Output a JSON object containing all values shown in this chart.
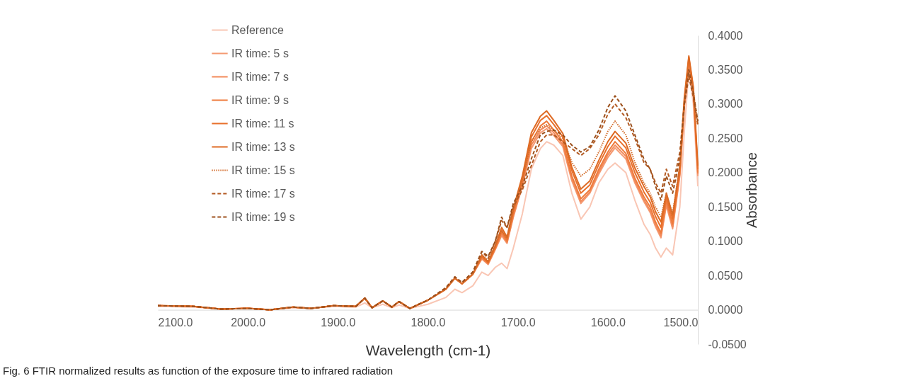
{
  "chart_data": {
    "type": "line",
    "title": "Fig. 6 FTIR normalized results as function of the exposure time to infrared radiation",
    "xlabel": "Wavelength (cm-1)",
    "ylabel": "Absorbance",
    "legend": "top left",
    "xlim": [
      2100,
      1500
    ],
    "ylim": [
      -0.05,
      0.4
    ],
    "xticks": [
      {
        "value": 2100,
        "label": "2100.0"
      },
      {
        "value": 2000,
        "label": "2000.0"
      },
      {
        "value": 1900,
        "label": "1900.0"
      },
      {
        "value": 1800,
        "label": "1800.0"
      },
      {
        "value": 1700,
        "label": "1700.0"
      },
      {
        "value": 1600,
        "label": "1600.0"
      },
      {
        "value": 1500,
        "label": "1500.0"
      }
    ],
    "yticks": [
      {
        "value": -0.05,
        "label": "-0.0500"
      },
      {
        "value": 0,
        "label": "0.0000"
      },
      {
        "value": 0.05,
        "label": "0.0500"
      },
      {
        "value": 0.1,
        "label": "0.1000"
      },
      {
        "value": 0.15,
        "label": "0.1500"
      },
      {
        "value": 0.2,
        "label": "0.2000"
      },
      {
        "value": 0.25,
        "label": "0.2500"
      },
      {
        "value": 0.3,
        "label": "0.3000"
      },
      {
        "value": 0.35,
        "label": "0.3500"
      },
      {
        "value": 0.4,
        "label": "0.4000"
      }
    ],
    "x": [
      2100,
      2060,
      2030,
      2000,
      1975,
      1950,
      1930,
      1905,
      1880,
      1870,
      1862,
      1850,
      1840,
      1832,
      1820,
      1800,
      1780,
      1770,
      1762,
      1750,
      1740,
      1733,
      1725,
      1718,
      1712,
      1705,
      1695,
      1685,
      1675,
      1668,
      1660,
      1650,
      1640,
      1630,
      1620,
      1610,
      1600,
      1592,
      1580,
      1570,
      1560,
      1553,
      1547,
      1541,
      1535,
      1528,
      1520,
      1515,
      1510,
      1505,
      1500
    ],
    "series": [
      {
        "name": "Reference",
        "color": "#f9c6b4",
        "line_style": "solid",
        "values": [
          0.005,
          0.004,
          0.001,
          0.002,
          0.0,
          0.003,
          0.002,
          0.005,
          0.004,
          0.01,
          0.003,
          0.008,
          0.003,
          0.007,
          0.002,
          0.008,
          0.018,
          0.03,
          0.025,
          0.035,
          0.055,
          0.05,
          0.062,
          0.068,
          0.06,
          0.09,
          0.14,
          0.205,
          0.235,
          0.245,
          0.24,
          0.225,
          0.17,
          0.132,
          0.15,
          0.185,
          0.205,
          0.214,
          0.2,
          0.16,
          0.125,
          0.11,
          0.09,
          0.077,
          0.09,
          0.08,
          0.15,
          0.26,
          0.35,
          0.3,
          0.18
        ]
      },
      {
        "name": "IR time: 5 s",
        "color": "#f49a72",
        "line_style": "solid",
        "values": [
          0.006,
          0.005,
          0.001,
          0.002,
          0.0,
          0.004,
          0.002,
          0.006,
          0.005,
          0.017,
          0.003,
          0.013,
          0.004,
          0.012,
          0.002,
          0.014,
          0.03,
          0.046,
          0.038,
          0.052,
          0.074,
          0.066,
          0.088,
          0.108,
          0.097,
          0.135,
          0.18,
          0.235,
          0.258,
          0.264,
          0.254,
          0.238,
          0.188,
          0.155,
          0.17,
          0.198,
          0.222,
          0.236,
          0.22,
          0.185,
          0.158,
          0.142,
          0.121,
          0.105,
          0.152,
          0.118,
          0.195,
          0.295,
          0.36,
          0.315,
          0.195
        ]
      },
      {
        "name": "IR time: 7 s",
        "color": "#f28a5a",
        "line_style": "solid",
        "values": [
          0.006,
          0.005,
          0.001,
          0.002,
          0.0,
          0.004,
          0.002,
          0.006,
          0.005,
          0.017,
          0.003,
          0.013,
          0.004,
          0.012,
          0.002,
          0.014,
          0.03,
          0.046,
          0.038,
          0.052,
          0.075,
          0.067,
          0.089,
          0.11,
          0.098,
          0.137,
          0.182,
          0.24,
          0.262,
          0.268,
          0.258,
          0.241,
          0.191,
          0.158,
          0.172,
          0.201,
          0.226,
          0.24,
          0.224,
          0.188,
          0.161,
          0.145,
          0.124,
          0.108,
          0.155,
          0.121,
          0.198,
          0.298,
          0.362,
          0.318,
          0.198
        ]
      },
      {
        "name": "IR time: 9 s",
        "color": "#ee7b3c",
        "line_style": "solid",
        "values": [
          0.006,
          0.005,
          0.001,
          0.002,
          0.0,
          0.004,
          0.002,
          0.006,
          0.005,
          0.017,
          0.003,
          0.013,
          0.004,
          0.012,
          0.002,
          0.014,
          0.03,
          0.046,
          0.038,
          0.052,
          0.077,
          0.068,
          0.09,
          0.113,
          0.1,
          0.14,
          0.185,
          0.245,
          0.268,
          0.275,
          0.262,
          0.245,
          0.195,
          0.162,
          0.175,
          0.205,
          0.23,
          0.245,
          0.228,
          0.192,
          0.165,
          0.15,
          0.128,
          0.112,
          0.16,
          0.125,
          0.2,
          0.3,
          0.365,
          0.32,
          0.2
        ]
      },
      {
        "name": "IR time: 11 s",
        "color": "#e8702c",
        "line_style": "solid",
        "values": [
          0.006,
          0.005,
          0.001,
          0.002,
          0.0,
          0.004,
          0.002,
          0.006,
          0.005,
          0.017,
          0.003,
          0.013,
          0.004,
          0.012,
          0.002,
          0.014,
          0.03,
          0.046,
          0.038,
          0.052,
          0.078,
          0.069,
          0.092,
          0.116,
          0.103,
          0.145,
          0.19,
          0.252,
          0.276,
          0.283,
          0.27,
          0.252,
          0.203,
          0.17,
          0.182,
          0.212,
          0.238,
          0.253,
          0.236,
          0.2,
          0.172,
          0.157,
          0.136,
          0.12,
          0.165,
          0.132,
          0.205,
          0.305,
          0.368,
          0.322,
          0.205
        ]
      },
      {
        "name": "IR time: 13 s",
        "color": "#de6a24",
        "line_style": "solid",
        "values": [
          0.006,
          0.005,
          0.001,
          0.002,
          0.0,
          0.004,
          0.002,
          0.006,
          0.005,
          0.017,
          0.003,
          0.013,
          0.004,
          0.012,
          0.002,
          0.014,
          0.03,
          0.046,
          0.038,
          0.052,
          0.08,
          0.07,
          0.094,
          0.12,
          0.106,
          0.148,
          0.195,
          0.258,
          0.282,
          0.29,
          0.276,
          0.257,
          0.208,
          0.176,
          0.188,
          0.218,
          0.245,
          0.26,
          0.243,
          0.207,
          0.18,
          0.165,
          0.143,
          0.128,
          0.17,
          0.138,
          0.21,
          0.31,
          0.37,
          0.325,
          0.21
        ]
      },
      {
        "name": "IR time: 15 s",
        "color": "#d36d2c",
        "line_style": "dotted",
        "values": [
          0.006,
          0.005,
          0.001,
          0.002,
          0.0,
          0.004,
          0.002,
          0.006,
          0.005,
          0.017,
          0.003,
          0.013,
          0.004,
          0.012,
          0.002,
          0.014,
          0.03,
          0.046,
          0.038,
          0.052,
          0.08,
          0.072,
          0.095,
          0.115,
          0.105,
          0.145,
          0.19,
          0.245,
          0.265,
          0.27,
          0.262,
          0.25,
          0.215,
          0.195,
          0.205,
          0.23,
          0.26,
          0.275,
          0.255,
          0.215,
          0.185,
          0.17,
          0.15,
          0.135,
          0.17,
          0.14,
          0.21,
          0.3,
          0.35,
          0.32,
          0.27
        ]
      },
      {
        "name": "IR time: 17 s",
        "color": "#b35a22",
        "line_style": "dashed",
        "values": [
          0.006,
          0.005,
          0.001,
          0.002,
          0.0,
          0.004,
          0.002,
          0.006,
          0.005,
          0.017,
          0.003,
          0.013,
          0.004,
          0.012,
          0.002,
          0.014,
          0.032,
          0.048,
          0.04,
          0.055,
          0.085,
          0.075,
          0.1,
          0.13,
          0.12,
          0.15,
          0.175,
          0.21,
          0.245,
          0.255,
          0.255,
          0.245,
          0.235,
          0.225,
          0.235,
          0.255,
          0.285,
          0.3,
          0.28,
          0.25,
          0.215,
          0.205,
          0.185,
          0.17,
          0.205,
          0.18,
          0.23,
          0.3,
          0.34,
          0.31,
          0.27
        ]
      },
      {
        "name": "IR time: 19 s",
        "color": "#9c501c",
        "line_style": "dashed",
        "values": [
          0.006,
          0.005,
          0.001,
          0.002,
          0.0,
          0.004,
          0.002,
          0.006,
          0.005,
          0.017,
          0.003,
          0.013,
          0.004,
          0.012,
          0.002,
          0.014,
          0.032,
          0.048,
          0.04,
          0.055,
          0.085,
          0.078,
          0.1,
          0.135,
          0.12,
          0.155,
          0.18,
          0.22,
          0.255,
          0.26,
          0.262,
          0.255,
          0.24,
          0.23,
          0.238,
          0.262,
          0.295,
          0.312,
          0.29,
          0.255,
          0.22,
          0.205,
          0.18,
          0.16,
          0.195,
          0.17,
          0.22,
          0.3,
          0.35,
          0.315,
          0.275
        ]
      }
    ]
  }
}
